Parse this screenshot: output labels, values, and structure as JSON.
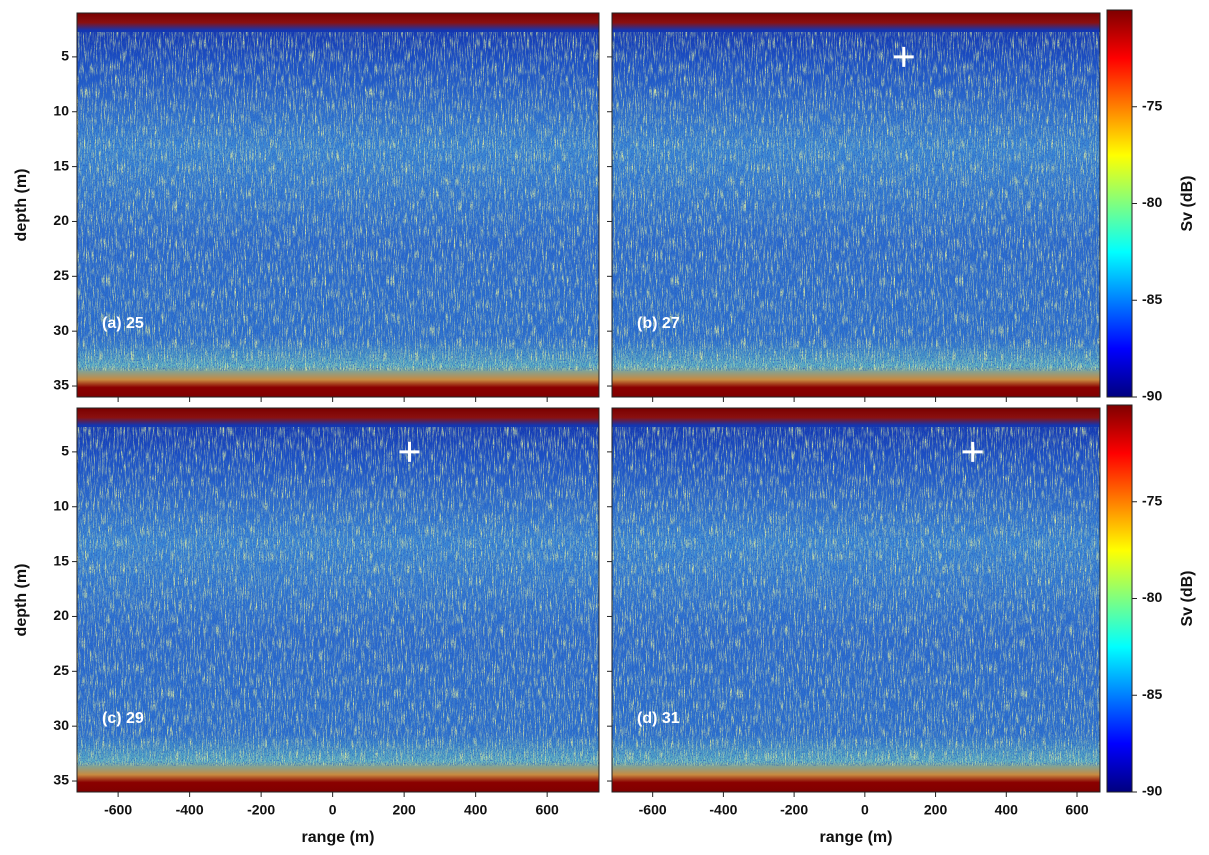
{
  "chart_data": [
    {
      "type": "heatmap",
      "panel_label": "(a) 25",
      "ylabel": "depth (m)",
      "xlim": [
        -715,
        745
      ],
      "xticks": [
        -600,
        -400,
        -200,
        0,
        200,
        400,
        600
      ],
      "xtick_labels": false,
      "ylim": [
        1,
        36
      ],
      "yticks": [
        5,
        10,
        15,
        20,
        25,
        30,
        35
      ],
      "ytick_labels": true
    },
    {
      "type": "heatmap",
      "panel_label": "(b) 27",
      "xlim": [
        -715,
        665
      ],
      "xticks": [
        -600,
        -400,
        -200,
        0,
        200,
        400,
        600
      ],
      "xtick_labels": false,
      "ylim": [
        1,
        36
      ],
      "yticks": [
        5,
        10,
        15,
        20,
        25,
        30,
        35
      ],
      "ytick_labels": false,
      "markers": [
        {
          "x": 110,
          "y": 5
        }
      ],
      "colorbar": {
        "label": "Sv (dB)",
        "lim": [
          -90,
          -70
        ],
        "ticks": [
          -90,
          -85,
          -80,
          -75
        ]
      }
    },
    {
      "type": "heatmap",
      "panel_label": "(c) 29",
      "ylabel": "depth (m)",
      "xlabel": "range (m)",
      "xlim": [
        -715,
        745
      ],
      "xticks": [
        -600,
        -400,
        -200,
        0,
        200,
        400,
        600
      ],
      "xtick_labels": true,
      "ylim": [
        1,
        36
      ],
      "yticks": [
        5,
        10,
        15,
        20,
        25,
        30,
        35
      ],
      "ytick_labels": true,
      "markers": [
        {
          "x": 215,
          "y": 5
        }
      ]
    },
    {
      "type": "heatmap",
      "panel_label": "(d) 31",
      "xlabel": "range (m)",
      "xlim": [
        -715,
        665
      ],
      "xticks": [
        -600,
        -400,
        -200,
        0,
        200,
        400,
        600
      ],
      "xtick_labels": true,
      "ylim": [
        1,
        36
      ],
      "yticks": [
        5,
        10,
        15,
        20,
        25,
        30,
        35
      ],
      "ytick_labels": false,
      "markers": [
        {
          "x": 305,
          "y": 5
        }
      ],
      "colorbar": {
        "label": "Sv (dB)",
        "lim": [
          -90,
          -70
        ],
        "ticks": [
          -90,
          -85,
          -80,
          -75
        ]
      }
    }
  ]
}
